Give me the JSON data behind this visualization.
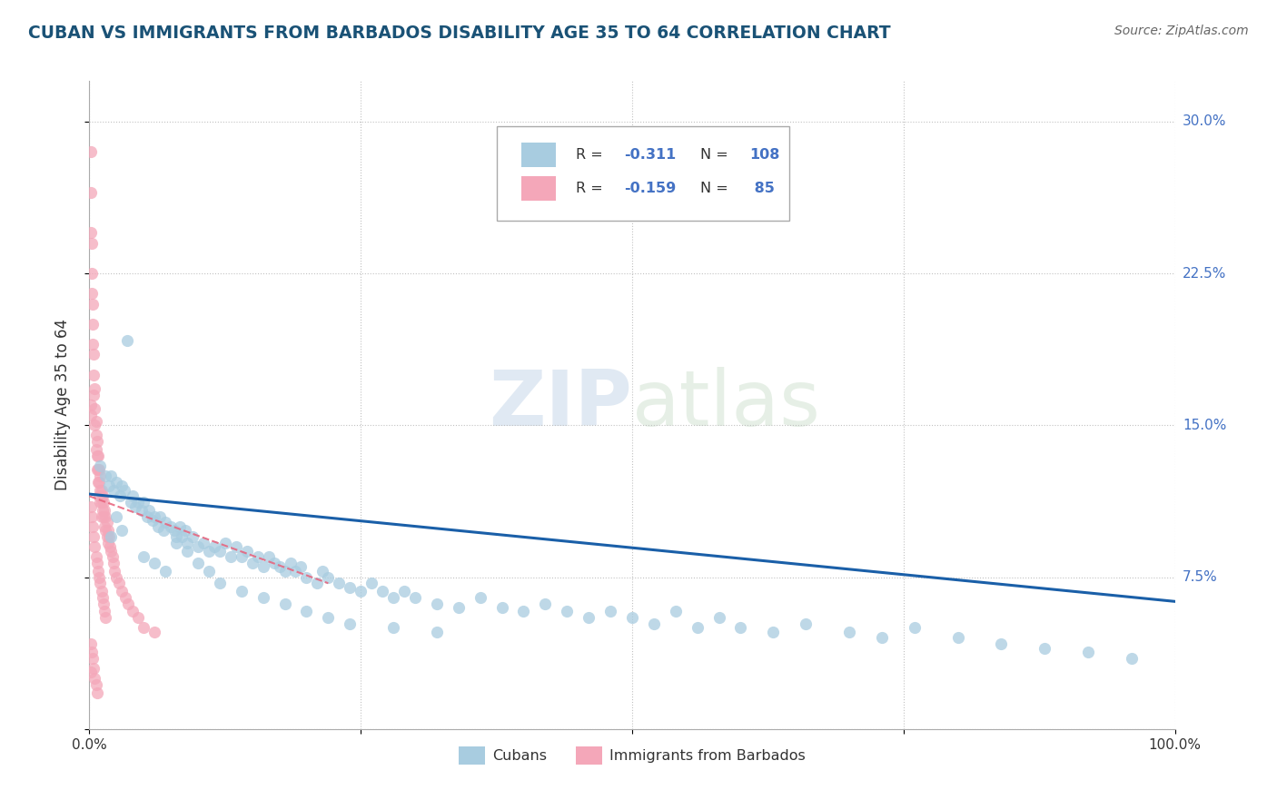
{
  "title": "CUBAN VS IMMIGRANTS FROM BARBADOS DISABILITY AGE 35 TO 64 CORRELATION CHART",
  "source": "Source: ZipAtlas.com",
  "ylabel": "Disability Age 35 to 64",
  "xlim": [
    0,
    1.0
  ],
  "ylim": [
    0,
    0.32
  ],
  "xticks": [
    0.0,
    0.25,
    0.5,
    0.75,
    1.0
  ],
  "xticklabels": [
    "0.0%",
    "",
    "",
    "",
    "100.0%"
  ],
  "yticks": [
    0.0,
    0.075,
    0.15,
    0.225,
    0.3
  ],
  "yticklabels": [
    "",
    "7.5%",
    "15.0%",
    "22.5%",
    "30.0%"
  ],
  "cubans_R": "-0.311",
  "cubans_N": "108",
  "barbados_R": "-0.159",
  "barbados_N": "85",
  "blue_color": "#a8cce0",
  "pink_color": "#f4a7b9",
  "blue_line_color": "#1a5fa8",
  "pink_line_color": "#e8607a",
  "legend_blue_label": "Cubans",
  "legend_pink_label": "Immigrants from Barbados",
  "watermark_zip": "ZIP",
  "watermark_atlas": "atlas",
  "title_color": "#1a5276",
  "source_color": "#666666",
  "blue_scatter_x": [
    0.01,
    0.015,
    0.018,
    0.02,
    0.022,
    0.025,
    0.028,
    0.03,
    0.032,
    0.035,
    0.038,
    0.04,
    0.042,
    0.045,
    0.048,
    0.05,
    0.053,
    0.055,
    0.058,
    0.06,
    0.063,
    0.065,
    0.068,
    0.07,
    0.075,
    0.078,
    0.08,
    0.083,
    0.085,
    0.088,
    0.09,
    0.095,
    0.1,
    0.105,
    0.11,
    0.115,
    0.12,
    0.125,
    0.13,
    0.135,
    0.14,
    0.145,
    0.15,
    0.155,
    0.16,
    0.165,
    0.17,
    0.175,
    0.18,
    0.185,
    0.19,
    0.195,
    0.2,
    0.21,
    0.215,
    0.22,
    0.23,
    0.24,
    0.25,
    0.26,
    0.27,
    0.28,
    0.29,
    0.3,
    0.32,
    0.34,
    0.36,
    0.38,
    0.4,
    0.42,
    0.44,
    0.46,
    0.48,
    0.5,
    0.52,
    0.54,
    0.56,
    0.58,
    0.6,
    0.63,
    0.66,
    0.7,
    0.73,
    0.76,
    0.8,
    0.84,
    0.88,
    0.92,
    0.96,
    0.02,
    0.025,
    0.03,
    0.05,
    0.06,
    0.07,
    0.08,
    0.09,
    0.1,
    0.11,
    0.12,
    0.14,
    0.16,
    0.18,
    0.2,
    0.22,
    0.24,
    0.28,
    0.32
  ],
  "blue_scatter_y": [
    0.13,
    0.125,
    0.12,
    0.125,
    0.118,
    0.122,
    0.115,
    0.12,
    0.118,
    0.192,
    0.112,
    0.115,
    0.11,
    0.112,
    0.108,
    0.112,
    0.105,
    0.108,
    0.103,
    0.105,
    0.1,
    0.105,
    0.098,
    0.102,
    0.1,
    0.098,
    0.095,
    0.1,
    0.095,
    0.098,
    0.092,
    0.095,
    0.09,
    0.092,
    0.088,
    0.09,
    0.088,
    0.092,
    0.085,
    0.09,
    0.085,
    0.088,
    0.082,
    0.085,
    0.08,
    0.085,
    0.082,
    0.08,
    0.078,
    0.082,
    0.078,
    0.08,
    0.075,
    0.072,
    0.078,
    0.075,
    0.072,
    0.07,
    0.068,
    0.072,
    0.068,
    0.065,
    0.068,
    0.065,
    0.062,
    0.06,
    0.065,
    0.06,
    0.058,
    0.062,
    0.058,
    0.055,
    0.058,
    0.055,
    0.052,
    0.058,
    0.05,
    0.055,
    0.05,
    0.048,
    0.052,
    0.048,
    0.045,
    0.05,
    0.045,
    0.042,
    0.04,
    0.038,
    0.035,
    0.095,
    0.105,
    0.098,
    0.085,
    0.082,
    0.078,
    0.092,
    0.088,
    0.082,
    0.078,
    0.072,
    0.068,
    0.065,
    0.062,
    0.058,
    0.055,
    0.052,
    0.05,
    0.048
  ],
  "pink_scatter_x": [
    0.001,
    0.001,
    0.001,
    0.002,
    0.002,
    0.002,
    0.003,
    0.003,
    0.003,
    0.004,
    0.004,
    0.004,
    0.005,
    0.005,
    0.005,
    0.006,
    0.006,
    0.006,
    0.007,
    0.007,
    0.007,
    0.008,
    0.008,
    0.008,
    0.009,
    0.009,
    0.009,
    0.01,
    0.01,
    0.01,
    0.011,
    0.011,
    0.011,
    0.012,
    0.012,
    0.013,
    0.013,
    0.014,
    0.014,
    0.015,
    0.015,
    0.016,
    0.016,
    0.017,
    0.017,
    0.018,
    0.019,
    0.02,
    0.021,
    0.022,
    0.023,
    0.025,
    0.027,
    0.03,
    0.033,
    0.036,
    0.04,
    0.045,
    0.05,
    0.06,
    0.001,
    0.002,
    0.003,
    0.004,
    0.005,
    0.006,
    0.007,
    0.008,
    0.009,
    0.01,
    0.011,
    0.012,
    0.013,
    0.014,
    0.015,
    0.001,
    0.002,
    0.003,
    0.004,
    0.005,
    0.006,
    0.007,
    0.001,
    0.001,
    0.001
  ],
  "pink_scatter_y": [
    0.285,
    0.265,
    0.245,
    0.24,
    0.225,
    0.215,
    0.21,
    0.2,
    0.19,
    0.185,
    0.175,
    0.165,
    0.168,
    0.158,
    0.15,
    0.152,
    0.145,
    0.138,
    0.142,
    0.135,
    0.128,
    0.135,
    0.128,
    0.122,
    0.128,
    0.122,
    0.115,
    0.125,
    0.118,
    0.112,
    0.118,
    0.112,
    0.105,
    0.115,
    0.108,
    0.112,
    0.105,
    0.108,
    0.1,
    0.105,
    0.098,
    0.102,
    0.095,
    0.098,
    0.092,
    0.095,
    0.09,
    0.088,
    0.085,
    0.082,
    0.078,
    0.075,
    0.072,
    0.068,
    0.065,
    0.062,
    0.058,
    0.055,
    0.05,
    0.048,
    0.11,
    0.105,
    0.1,
    0.095,
    0.09,
    0.085,
    0.082,
    0.078,
    0.075,
    0.072,
    0.068,
    0.065,
    0.062,
    0.058,
    0.055,
    0.042,
    0.038,
    0.035,
    0.03,
    0.025,
    0.022,
    0.018,
    0.16,
    0.155,
    0.028
  ],
  "blue_trend_x": [
    0.0,
    1.0
  ],
  "blue_trend_y": [
    0.116,
    0.063
  ],
  "pink_trend_x": [
    0.0,
    0.22
  ],
  "pink_trend_y": [
    0.115,
    0.072
  ]
}
